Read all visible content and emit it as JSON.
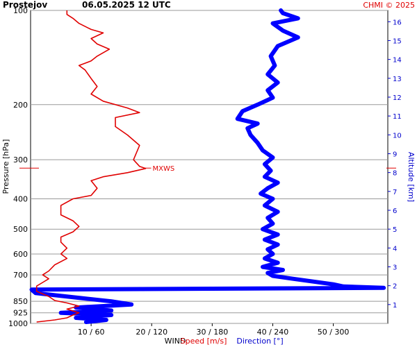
{
  "header": {
    "station": "Prostejov",
    "datetime": "06.05.2025 12 UTC",
    "credit": "CHMI © 2025"
  },
  "axes": {
    "pressure_label": "Pressure [hPa]",
    "altitude_label": "Altitude [km]",
    "pressure_ticks": [
      100,
      200,
      300,
      400,
      500,
      600,
      700,
      850,
      925,
      1000
    ],
    "altitude_ticks": [
      1,
      2,
      3,
      4,
      5,
      6,
      7,
      8,
      9,
      10,
      11,
      12,
      13,
      14,
      15,
      16
    ],
    "x_ticks": [
      "10 / 60",
      "20 / 120",
      "30 / 180",
      "40 / 240",
      "50 / 300"
    ]
  },
  "legend": {
    "wind": "WIND",
    "speed": "Speed [m/s]",
    "direction": "Direction [°]"
  },
  "colors": {
    "speed": "#e00000",
    "direction": "#0000ff",
    "altitude": "#0000cc",
    "grid": "#999999"
  },
  "chart_data": {
    "type": "line",
    "title": "Prostejov   06.05.2025 12 UTC",
    "y_axis": {
      "label": "Pressure [hPa]",
      "scale": "log",
      "range": [
        1000,
        100
      ],
      "inverted": true
    },
    "y2_axis": {
      "label": "Altitude [km]",
      "range": [
        0,
        16.6
      ]
    },
    "x_axis": {
      "speed_range_ms": [
        0,
        59
      ],
      "direction_range_deg": [
        0,
        354
      ]
    },
    "annotations": [
      {
        "text": "MXWS",
        "pressure": 319,
        "speed": 19
      }
    ],
    "series": [
      {
        "name": "Speed [m/s]",
        "color": "#e00000",
        "points": [
          {
            "p": 990,
            "v": 1
          },
          {
            "p": 975,
            "v": 4
          },
          {
            "p": 960,
            "v": 6
          },
          {
            "p": 940,
            "v": 7
          },
          {
            "p": 925,
            "v": 8
          },
          {
            "p": 900,
            "v": 6
          },
          {
            "p": 880,
            "v": 8
          },
          {
            "p": 860,
            "v": 6
          },
          {
            "p": 845,
            "v": 4
          },
          {
            "p": 820,
            "v": 3
          },
          {
            "p": 790,
            "v": 1
          },
          {
            "p": 760,
            "v": 1
          },
          {
            "p": 740,
            "v": 2
          },
          {
            "p": 720,
            "v": 3
          },
          {
            "p": 700,
            "v": 2
          },
          {
            "p": 680,
            "v": 3
          },
          {
            "p": 650,
            "v": 4
          },
          {
            "p": 620,
            "v": 6
          },
          {
            "p": 600,
            "v": 5
          },
          {
            "p": 575,
            "v": 6
          },
          {
            "p": 550,
            "v": 5
          },
          {
            "p": 530,
            "v": 5
          },
          {
            "p": 510,
            "v": 7
          },
          {
            "p": 490,
            "v": 8
          },
          {
            "p": 470,
            "v": 7
          },
          {
            "p": 450,
            "v": 5
          },
          {
            "p": 420,
            "v": 5
          },
          {
            "p": 400,
            "v": 7
          },
          {
            "p": 390,
            "v": 10
          },
          {
            "p": 370,
            "v": 11
          },
          {
            "p": 350,
            "v": 10
          },
          {
            "p": 340,
            "v": 12
          },
          {
            "p": 330,
            "v": 16
          },
          {
            "p": 320,
            "v": 19
          },
          {
            "p": 315,
            "v": 18
          },
          {
            "p": 300,
            "v": 17
          },
          {
            "p": 270,
            "v": 18
          },
          {
            "p": 250,
            "v": 16
          },
          {
            "p": 235,
            "v": 14
          },
          {
            "p": 220,
            "v": 14
          },
          {
            "p": 212,
            "v": 18
          },
          {
            "p": 205,
            "v": 16
          },
          {
            "p": 195,
            "v": 12
          },
          {
            "p": 185,
            "v": 10
          },
          {
            "p": 175,
            "v": 11
          },
          {
            "p": 165,
            "v": 10
          },
          {
            "p": 155,
            "v": 9
          },
          {
            "p": 150,
            "v": 8
          },
          {
            "p": 145,
            "v": 10
          },
          {
            "p": 140,
            "v": 11
          },
          {
            "p": 133,
            "v": 13
          },
          {
            "p": 128,
            "v": 11
          },
          {
            "p": 123,
            "v": 10
          },
          {
            "p": 118,
            "v": 12
          },
          {
            "p": 115,
            "v": 10
          },
          {
            "p": 110,
            "v": 8
          },
          {
            "p": 106,
            "v": 7
          },
          {
            "p": 103,
            "v": 6
          },
          {
            "p": 100,
            "v": 6
          }
        ]
      },
      {
        "name": "Direction [°]",
        "color": "#0000ff",
        "points": [
          {
            "p": 990,
            "d": 55
          },
          {
            "p": 975,
            "d": 75
          },
          {
            "p": 960,
            "d": 45
          },
          {
            "p": 940,
            "d": 80
          },
          {
            "p": 925,
            "d": 30
          },
          {
            "p": 910,
            "d": 80
          },
          {
            "p": 890,
            "d": 45
          },
          {
            "p": 870,
            "d": 100
          },
          {
            "p": 850,
            "d": 80
          },
          {
            "p": 830,
            "d": 50
          },
          {
            "p": 800,
            "d": 5
          },
          {
            "p": 780,
            "d": 1
          },
          {
            "p": 770,
            "d": 350
          },
          {
            "p": 762,
            "d": 310
          },
          {
            "p": 750,
            "d": 300
          },
          {
            "p": 735,
            "d": 280
          },
          {
            "p": 720,
            "d": 260
          },
          {
            "p": 705,
            "d": 240
          },
          {
            "p": 690,
            "d": 235
          },
          {
            "p": 675,
            "d": 250
          },
          {
            "p": 660,
            "d": 230
          },
          {
            "p": 640,
            "d": 245
          },
          {
            "p": 620,
            "d": 232
          },
          {
            "p": 600,
            "d": 240
          },
          {
            "p": 580,
            "d": 235
          },
          {
            "p": 560,
            "d": 245
          },
          {
            "p": 540,
            "d": 232
          },
          {
            "p": 520,
            "d": 245
          },
          {
            "p": 500,
            "d": 230
          },
          {
            "p": 480,
            "d": 240
          },
          {
            "p": 460,
            "d": 235
          },
          {
            "p": 440,
            "d": 245
          },
          {
            "p": 420,
            "d": 232
          },
          {
            "p": 400,
            "d": 240
          },
          {
            "p": 385,
            "d": 228
          },
          {
            "p": 370,
            "d": 235
          },
          {
            "p": 355,
            "d": 245
          },
          {
            "p": 340,
            "d": 232
          },
          {
            "p": 325,
            "d": 238
          },
          {
            "p": 310,
            "d": 232
          },
          {
            "p": 295,
            "d": 240
          },
          {
            "p": 280,
            "d": 230
          },
          {
            "p": 265,
            "d": 225
          },
          {
            "p": 250,
            "d": 218
          },
          {
            "p": 238,
            "d": 215
          },
          {
            "p": 230,
            "d": 225
          },
          {
            "p": 222,
            "d": 205
          },
          {
            "p": 210,
            "d": 210
          },
          {
            "p": 200,
            "d": 225
          },
          {
            "p": 190,
            "d": 240
          },
          {
            "p": 180,
            "d": 235
          },
          {
            "p": 170,
            "d": 245
          },
          {
            "p": 160,
            "d": 235
          },
          {
            "p": 150,
            "d": 242
          },
          {
            "p": 140,
            "d": 238
          },
          {
            "p": 130,
            "d": 245
          },
          {
            "p": 122,
            "d": 265
          },
          {
            "p": 116,
            "d": 250
          },
          {
            "p": 110,
            "d": 240
          },
          {
            "p": 106,
            "d": 265
          },
          {
            "p": 102,
            "d": 250
          },
          {
            "p": 100,
            "d": 248
          }
        ]
      }
    ]
  }
}
